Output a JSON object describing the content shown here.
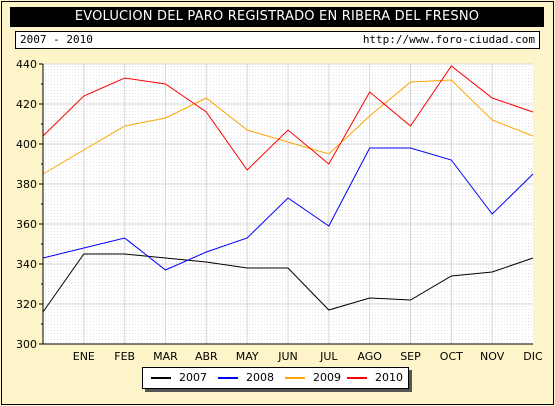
{
  "header": {
    "title": "EVOLUCION DEL PARO REGISTRADO EN RIBERA DEL FRESNO",
    "period": "2007 - 2010",
    "url": "http://www.foro-ciudad.com"
  },
  "colors": {
    "background": "#fdf5c9",
    "plot_background": "#ffffff",
    "grid": "#d8d8d8"
  },
  "chart_data": {
    "type": "line",
    "categories": [
      "",
      "ENE",
      "FEB",
      "MAR",
      "ABR",
      "MAY",
      "JUN",
      "JUL",
      "AGO",
      "SEP",
      "OCT",
      "NOV",
      "DIC"
    ],
    "ylim": [
      300,
      440
    ],
    "yticks": [
      300,
      320,
      340,
      360,
      380,
      400,
      420,
      440
    ],
    "grid": true,
    "legend_position": "bottom",
    "series": [
      {
        "name": "2007",
        "color": "#000000",
        "values": [
          316,
          345,
          345,
          343,
          341,
          338,
          338,
          317,
          323,
          322,
          334,
          336,
          343
        ]
      },
      {
        "name": "2008",
        "color": "#0000ff",
        "values": [
          343,
          348,
          353,
          337,
          346,
          353,
          373,
          359,
          398,
          398,
          392,
          365,
          385
        ]
      },
      {
        "name": "2009",
        "color": "#ffa500",
        "values": [
          385,
          397,
          409,
          413,
          423,
          407,
          401,
          395,
          414,
          431,
          432,
          412,
          404
        ]
      },
      {
        "name": "2010",
        "color": "#ff0000",
        "values": [
          404,
          424,
          433,
          430,
          416,
          387,
          407,
          390,
          426,
          409,
          439,
          423,
          416
        ]
      }
    ]
  }
}
